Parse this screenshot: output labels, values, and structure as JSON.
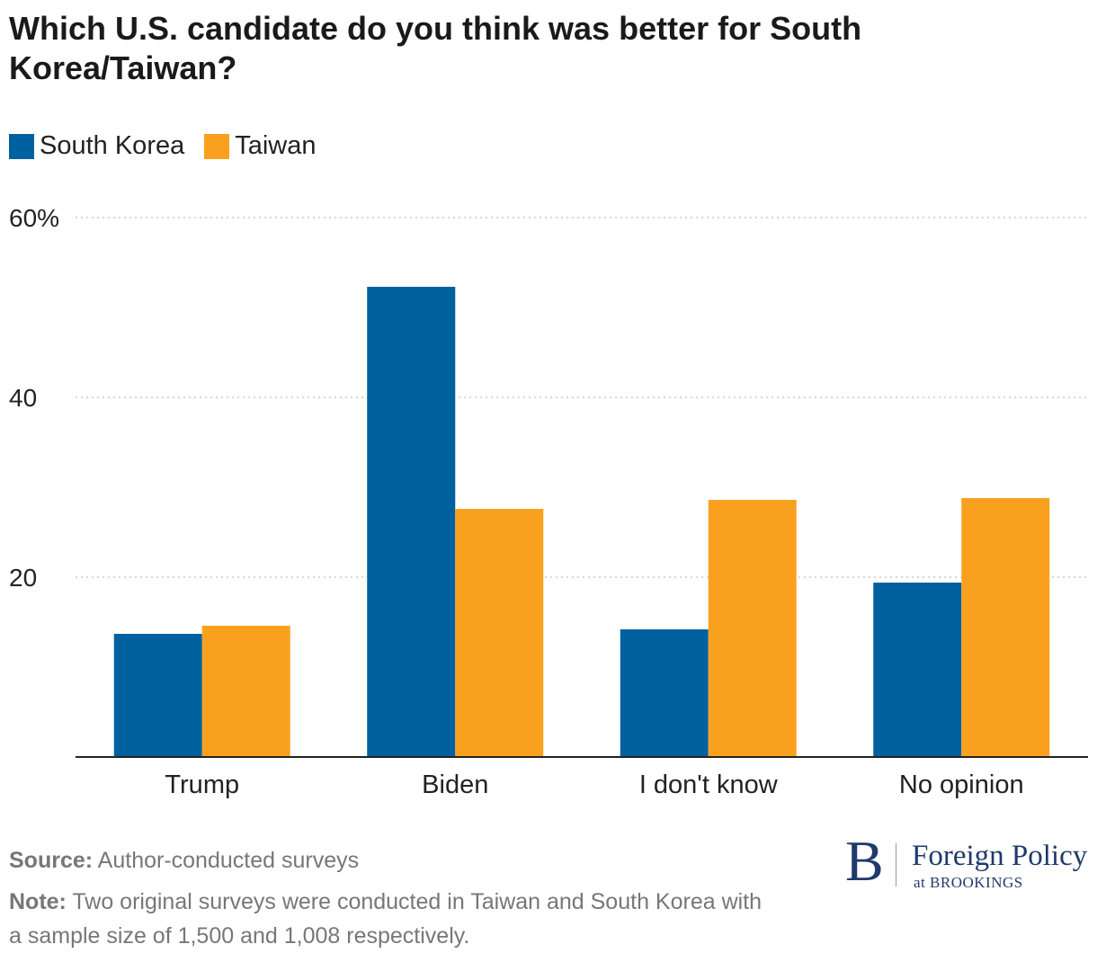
{
  "chart_data": {
    "type": "bar",
    "title": "Which U.S. candidate do you think was better for South Korea/Taiwan?",
    "categories": [
      "Trump",
      "Biden",
      "I don't know",
      "No opinion"
    ],
    "series": [
      {
        "name": "South Korea",
        "color": "#0061a0",
        "values": [
          13.7,
          52.3,
          14.2,
          19.4
        ]
      },
      {
        "name": "Taiwan",
        "color": "#f9a11f",
        "values": [
          14.6,
          27.6,
          28.6,
          28.8
        ]
      }
    ],
    "yticks": [
      {
        "value": 20,
        "label": "20"
      },
      {
        "value": 40,
        "label": "40"
      },
      {
        "value": 60,
        "label": "60%"
      }
    ],
    "ylim": [
      0,
      60
    ],
    "grid": true,
    "legend_position": "top-left"
  },
  "footer": {
    "source_label": "Source:",
    "source_text": "Author-conducted surveys",
    "note_label": "Note:",
    "note_text": "Two original surveys were conducted in Taiwan and South Korea with a sample size of 1,500 and 1,008 respectively."
  },
  "logo": {
    "letter": "B",
    "name": "Foreign Policy",
    "sub": "at BROOKINGS"
  }
}
